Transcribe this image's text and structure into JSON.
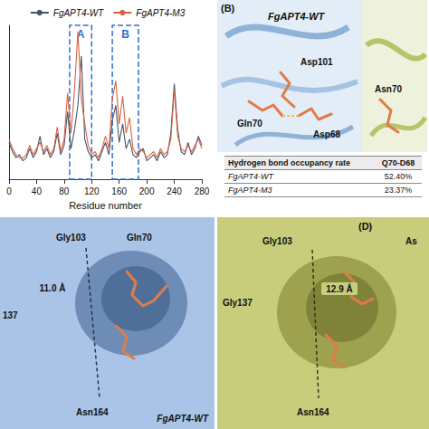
{
  "chart_data": {
    "type": "line",
    "xlabel": "Residue number",
    "x": [
      0,
      5,
      10,
      15,
      20,
      25,
      30,
      35,
      40,
      45,
      50,
      55,
      60,
      65,
      70,
      75,
      80,
      85,
      90,
      95,
      100,
      105,
      110,
      115,
      120,
      125,
      130,
      135,
      140,
      145,
      150,
      155,
      160,
      165,
      170,
      175,
      180,
      185,
      190,
      195,
      200,
      205,
      210,
      215,
      220,
      225,
      230,
      235,
      240,
      245,
      250,
      255,
      260,
      265,
      270,
      275,
      280
    ],
    "series": [
      {
        "name": "FgAPT4-WT",
        "color": "#4a5468",
        "values": [
          1.2,
          0.9,
          0.7,
          0.8,
          0.6,
          0.7,
          1.0,
          0.7,
          0.9,
          1.4,
          0.8,
          1.0,
          0.7,
          0.9,
          1.5,
          0.8,
          1.1,
          2.2,
          1.0,
          1.6,
          2.4,
          4.0,
          1.3,
          0.9,
          0.7,
          0.8,
          0.6,
          0.9,
          1.2,
          0.8,
          1.9,
          2.4,
          1.2,
          1.8,
          1.0,
          1.3,
          0.8,
          0.7,
          0.9,
          1.0,
          0.6,
          0.7,
          0.8,
          0.6,
          0.9,
          0.7,
          0.8,
          1.5,
          3.1,
          1.6,
          0.9,
          0.8,
          1.2,
          0.8,
          1.0,
          1.4,
          1.1
        ]
      },
      {
        "name": "FgAPT4-M3",
        "color": "#d9633f",
        "values": [
          1.3,
          1.0,
          0.8,
          0.7,
          0.7,
          0.8,
          1.1,
          0.8,
          1.0,
          1.2,
          0.9,
          1.1,
          0.8,
          1.0,
          1.7,
          0.9,
          1.3,
          2.8,
          1.5,
          2.9,
          4.8,
          2.6,
          1.8,
          1.1,
          0.8,
          0.9,
          0.7,
          1.0,
          1.4,
          1.0,
          2.6,
          3.2,
          1.8,
          2.7,
          1.5,
          2.0,
          1.0,
          0.8,
          1.0,
          0.9,
          0.7,
          0.8,
          0.9,
          0.7,
          1.0,
          0.8,
          0.9,
          1.3,
          2.9,
          1.4,
          1.0,
          0.9,
          1.1,
          0.9,
          1.1,
          1.3,
          1.0
        ]
      }
    ],
    "regions": [
      {
        "label": "A",
        "x": [
          88,
          120
        ]
      },
      {
        "label": "B",
        "x": [
          150,
          188
        ]
      }
    ],
    "xlim": [
      0,
      280
    ],
    "xticks": [
      0,
      40,
      80,
      120,
      160,
      200,
      240,
      280
    ],
    "ylim": [
      0,
      5
    ],
    "tick_labels": "x",
    "grid": false,
    "legend": "top"
  },
  "panels": {
    "B": {
      "letter": "(B)",
      "title": "FgAPT4-WT",
      "labels": [
        "Asp101",
        "Gln70",
        "Asp68",
        "Asn70"
      ],
      "table": {
        "header": [
          "Hydrogen bond occupancy rate",
          "Q70-D68"
        ],
        "rows": [
          [
            "FgAPT4-WT",
            "52.40%"
          ],
          [
            "FgAPT4-M3",
            "23.37%"
          ]
        ]
      }
    },
    "C": {
      "labels": [
        "Gly103",
        "Gln70",
        "137",
        "Asn164"
      ],
      "distance": "11.0 Å",
      "caption": "FgAPT4-WT"
    },
    "D": {
      "letter": "(D)",
      "labels": [
        "Gly103",
        "As",
        "Gly137",
        "Asn164"
      ],
      "distance": "12.9 Å"
    }
  }
}
